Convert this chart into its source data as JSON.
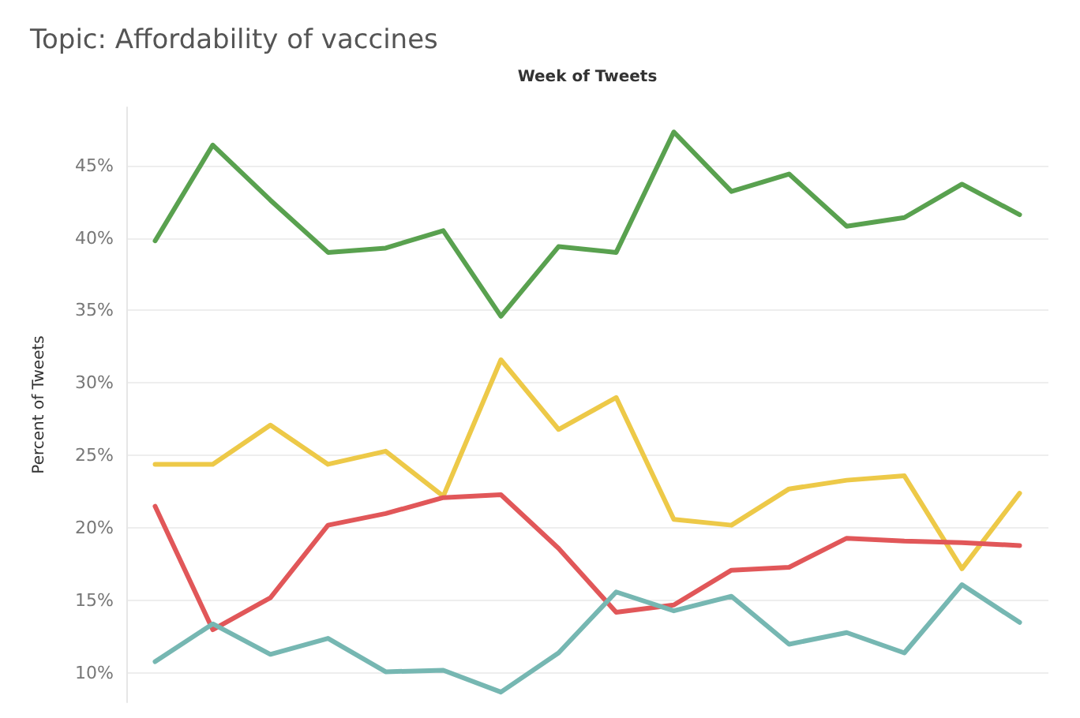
{
  "chart_data": {
    "type": "line",
    "title": "Topic: Affordability of vaccines",
    "xlabel": "Week of Tweets",
    "ylabel": "Percent of Tweets",
    "categories": [
      null,
      null,
      null,
      null,
      null,
      null,
      null,
      null,
      null,
      null,
      null,
      null,
      null,
      null,
      null,
      null
    ],
    "series": [
      {
        "color": "#59a14f",
        "values": [
          39.8,
          46.4,
          42.6,
          39.0,
          39.3,
          40.5,
          34.6,
          39.4,
          39.0,
          47.3,
          43.2,
          44.4,
          40.8,
          41.4,
          43.7,
          41.6
        ]
      },
      {
        "color": "#edc948",
        "values": [
          24.4,
          24.4,
          27.1,
          24.4,
          25.3,
          22.2,
          31.6,
          26.8,
          29.0,
          20.6,
          20.2,
          22.7,
          23.3,
          23.6,
          17.2,
          22.4
        ]
      },
      {
        "color": "#e15759",
        "values": [
          21.5,
          13.0,
          15.2,
          20.2,
          21.0,
          22.1,
          22.3,
          18.6,
          14.2,
          14.7,
          17.1,
          17.3,
          19.3,
          19.1,
          19.0,
          18.8
        ]
      },
      {
        "color": "#76b7b2",
        "values": [
          10.8,
          13.4,
          11.3,
          12.4,
          10.1,
          10.2,
          8.7,
          11.4,
          15.6,
          14.3,
          15.3,
          12.0,
          12.8,
          11.4,
          16.1,
          13.5
        ]
      }
    ],
    "ylim": [
      8,
      49
    ],
    "yticks": [
      {
        "value": 10,
        "label": "10%"
      },
      {
        "value": 15,
        "label": "15%"
      },
      {
        "value": 20,
        "label": "20%"
      },
      {
        "value": 25,
        "label": "25%"
      },
      {
        "value": 30,
        "label": "30%"
      },
      {
        "value": 35,
        "label": "35%"
      },
      {
        "value": 40,
        "label": "40%"
      },
      {
        "value": 45,
        "label": "45%"
      }
    ],
    "grid": "y",
    "marker": "none",
    "line_style": "solid",
    "tick_labels": "y"
  }
}
